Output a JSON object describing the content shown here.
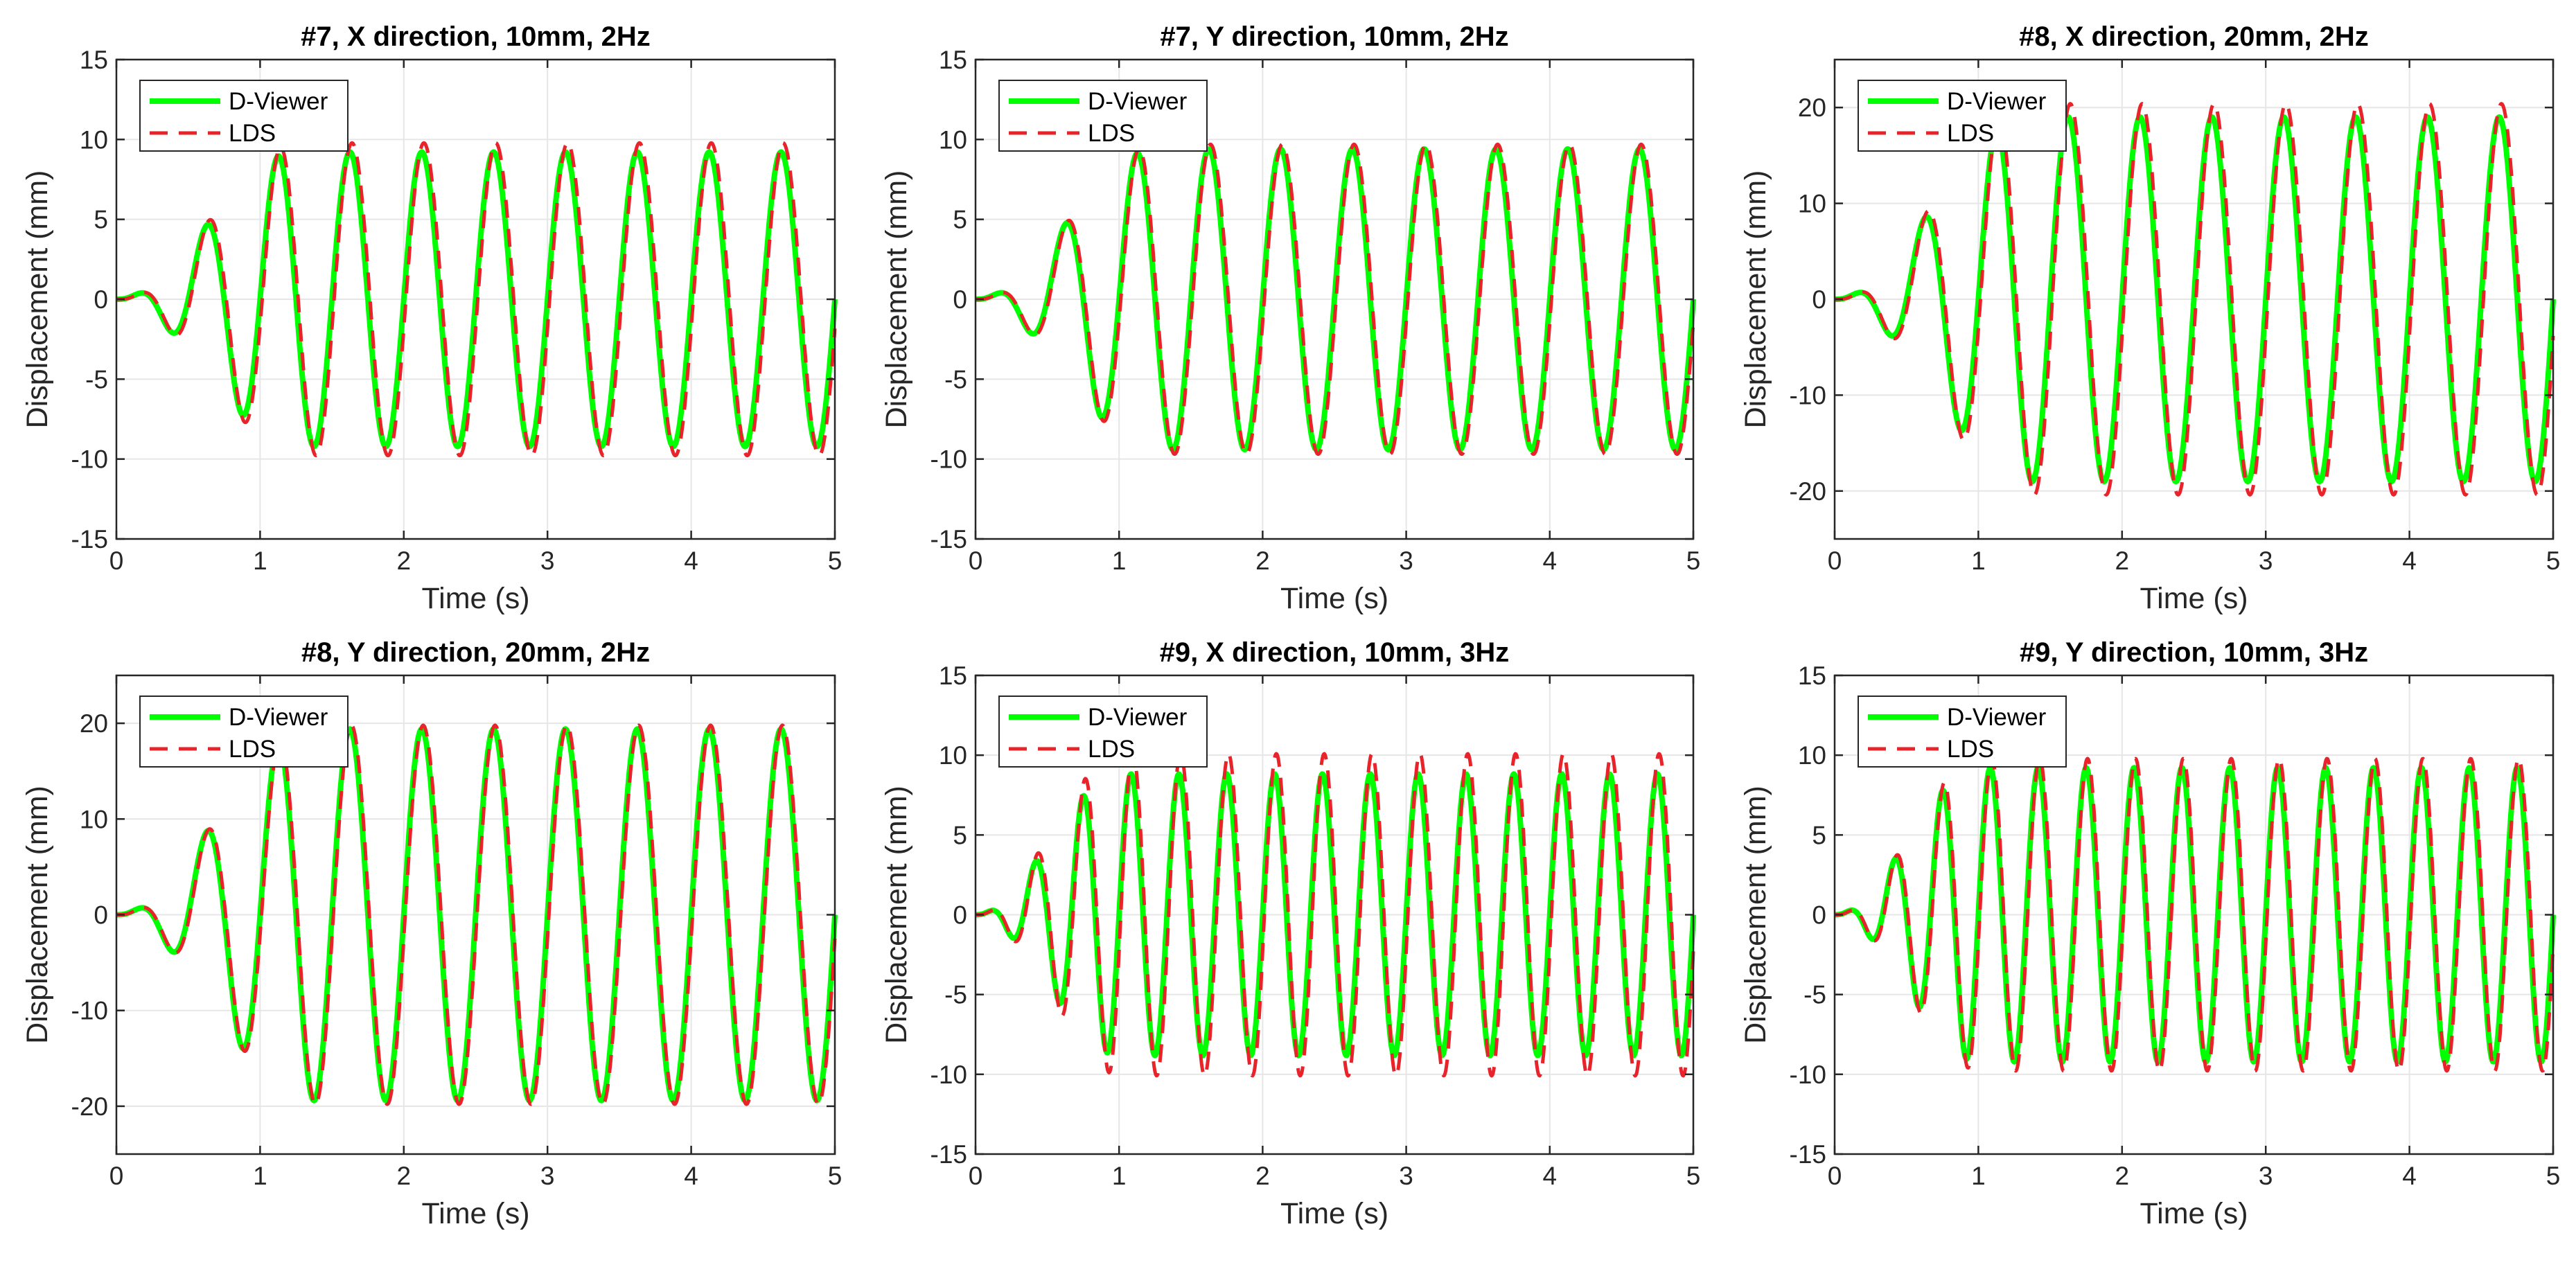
{
  "chart_data": [
    {
      "type": "line",
      "title": "#7, X direction, 10mm, 2Hz",
      "xlabel": "Time (s)",
      "ylabel": "Displacement (mm)",
      "xlim": [
        0,
        5
      ],
      "ylim": [
        -15,
        15
      ],
      "xticks": [
        0,
        1,
        2,
        3,
        4,
        5
      ],
      "yticks": [
        -15,
        -10,
        -5,
        0,
        5,
        10,
        15
      ],
      "grid": true,
      "legend_position": "top-left",
      "signal": {
        "amplitude": 9.5,
        "frequency_hz": 2,
        "ramp_s": 1.25,
        "duration_s": 5
      },
      "series": [
        {
          "name": "D-Viewer",
          "color": "#00ff00",
          "style": "solid",
          "amplitude_scale": 0.97,
          "phase_s": 0.0
        },
        {
          "name": "LDS",
          "color": "#e8242a",
          "style": "dashed",
          "amplitude_scale": 1.03,
          "phase_s": 0.015
        }
      ]
    },
    {
      "type": "line",
      "title": "#7, Y direction, 10mm, 2Hz",
      "xlabel": "Time (s)",
      "ylabel": "Displacement (mm)",
      "xlim": [
        0,
        5
      ],
      "ylim": [
        -15,
        15
      ],
      "xticks": [
        0,
        1,
        2,
        3,
        4,
        5
      ],
      "yticks": [
        -15,
        -10,
        -5,
        0,
        5,
        10,
        15
      ],
      "grid": true,
      "legend_position": "top-left",
      "signal": {
        "amplitude": 9.6,
        "frequency_hz": 2,
        "ramp_s": 1.25,
        "duration_s": 5
      },
      "series": [
        {
          "name": "D-Viewer",
          "color": "#00ff00",
          "style": "solid",
          "amplitude_scale": 0.98,
          "phase_s": 0.0
        },
        {
          "name": "LDS",
          "color": "#e8242a",
          "style": "dashed",
          "amplitude_scale": 1.01,
          "phase_s": 0.012
        }
      ]
    },
    {
      "type": "line",
      "title": "#8, X direction, 20mm, 2Hz",
      "xlabel": "Time (s)",
      "ylabel": "Displacement (mm)",
      "xlim": [
        0,
        5
      ],
      "ylim": [
        -25,
        25
      ],
      "xticks": [
        0,
        1,
        2,
        3,
        4,
        5
      ],
      "yticks": [
        -20,
        -10,
        0,
        10,
        20
      ],
      "grid": true,
      "legend_position": "top-left",
      "signal": {
        "amplitude": 19.8,
        "frequency_hz": 2,
        "ramp_s": 1.35,
        "duration_s": 5
      },
      "series": [
        {
          "name": "D-Viewer",
          "color": "#00ff00",
          "style": "solid",
          "amplitude_scale": 0.96,
          "phase_s": 0.0
        },
        {
          "name": "LDS",
          "color": "#e8242a",
          "style": "dashed",
          "amplitude_scale": 1.03,
          "phase_s": 0.015
        }
      ]
    },
    {
      "type": "line",
      "title": "#8, Y direction, 20mm, 2Hz",
      "xlabel": "Time (s)",
      "ylabel": "Displacement (mm)",
      "xlim": [
        0,
        5
      ],
      "ylim": [
        -25,
        25
      ],
      "xticks": [
        0,
        1,
        2,
        3,
        4,
        5
      ],
      "yticks": [
        -20,
        -10,
        0,
        10,
        20
      ],
      "grid": true,
      "legend_position": "top-left",
      "signal": {
        "amplitude": 19.6,
        "frequency_hz": 2,
        "ramp_s": 1.35,
        "duration_s": 5
      },
      "series": [
        {
          "name": "D-Viewer",
          "color": "#00ff00",
          "style": "solid",
          "amplitude_scale": 0.99,
          "phase_s": 0.0
        },
        {
          "name": "LDS",
          "color": "#e8242a",
          "style": "dashed",
          "amplitude_scale": 1.01,
          "phase_s": 0.01
        }
      ]
    },
    {
      "type": "line",
      "title": "#9, X direction, 10mm, 3Hz",
      "xlabel": "Time (s)",
      "ylabel": "Displacement (mm)",
      "xlim": [
        0,
        5
      ],
      "ylim": [
        -15,
        15
      ],
      "xticks": [
        0,
        1,
        2,
        3,
        4,
        5
      ],
      "yticks": [
        -15,
        -10,
        -5,
        0,
        5,
        10,
        15
      ],
      "grid": true,
      "legend_position": "top-left",
      "signal": {
        "amplitude": 9.8,
        "frequency_hz": 3,
        "ramp_s": 1.0,
        "duration_s": 5
      },
      "series": [
        {
          "name": "D-Viewer",
          "color": "#00ff00",
          "style": "solid",
          "amplitude_scale": 0.9,
          "phase_s": 0.0
        },
        {
          "name": "LDS",
          "color": "#e8242a",
          "style": "dashed",
          "amplitude_scale": 1.03,
          "phase_s": 0.012
        }
      ]
    },
    {
      "type": "line",
      "title": "#9, Y direction, 10mm, 3Hz",
      "xlabel": "Time (s)",
      "ylabel": "Displacement (mm)",
      "xlim": [
        0,
        5
      ],
      "ylim": [
        -15,
        15
      ],
      "xticks": [
        0,
        1,
        2,
        3,
        4,
        5
      ],
      "yticks": [
        -15,
        -10,
        -5,
        0,
        5,
        10,
        15
      ],
      "grid": true,
      "legend_position": "top-left",
      "signal": {
        "amplitude": 9.6,
        "frequency_hz": 3,
        "ramp_s": 1.0,
        "duration_s": 5
      },
      "series": [
        {
          "name": "D-Viewer",
          "color": "#00ff00",
          "style": "solid",
          "amplitude_scale": 0.96,
          "phase_s": 0.0
        },
        {
          "name": "LDS",
          "color": "#e8242a",
          "style": "dashed",
          "amplitude_scale": 1.02,
          "phase_s": 0.01
        }
      ]
    }
  ]
}
